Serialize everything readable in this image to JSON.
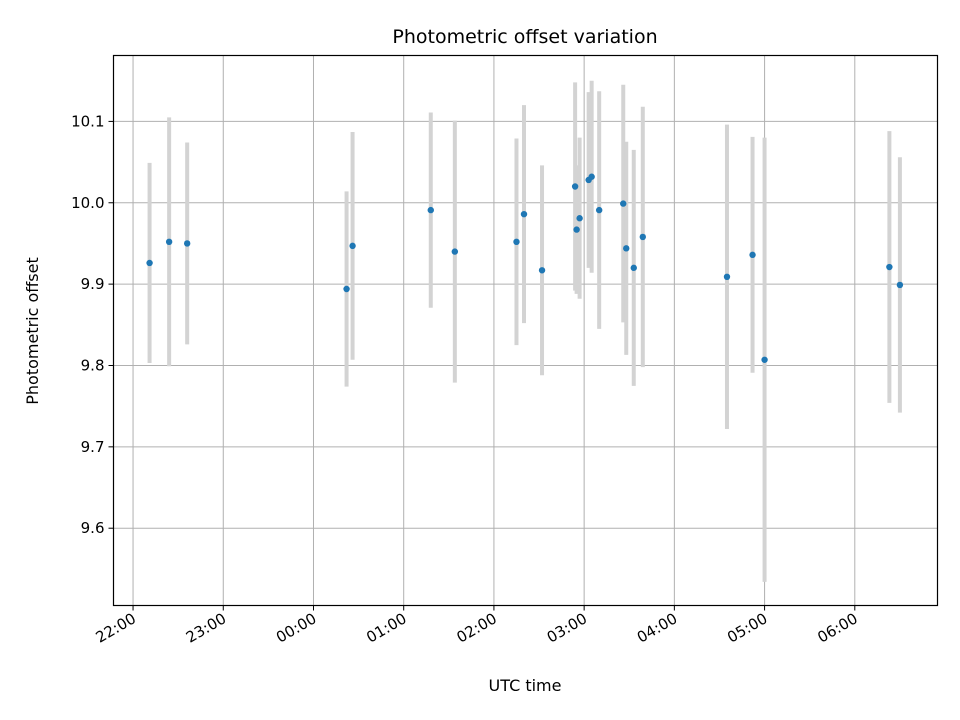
{
  "chart_data": {
    "type": "scatter",
    "title": "Photometric offset variation",
    "xlabel": "UTC time",
    "ylabel": "Photometric offset",
    "grid": true,
    "x_ticks": [
      "22:00",
      "23:00",
      "00:00",
      "01:00",
      "02:00",
      "03:00",
      "04:00",
      "05:00",
      "06:00"
    ],
    "y_ticks": [
      "9.6",
      "9.7",
      "9.8",
      "9.9",
      "10.0",
      "10.1"
    ],
    "x_tick_times": [
      "22:00",
      "23:00",
      "00:00",
      "01:00",
      "02:00",
      "03:00",
      "04:00",
      "05:00",
      "06:00"
    ],
    "y_tick_values": [
      9.6,
      9.7,
      9.8,
      9.9,
      10.0,
      10.1
    ],
    "xlim": [
      "21:47",
      "06:55"
    ],
    "ylim": [
      9.505,
      10.181
    ],
    "colors": {
      "marker": "#1f77b4",
      "errorbar": "#d3d3d3",
      "grid": "#b0b0b0"
    },
    "series": [
      {
        "points": [
          {
            "x": "22:11",
            "y": 9.926,
            "err": 0.123
          },
          {
            "x": "22:24",
            "y": 9.952,
            "err": 0.153
          },
          {
            "x": "22:36",
            "y": 9.95,
            "err": 0.124
          },
          {
            "x": "00:22",
            "y": 9.894,
            "err": 0.12
          },
          {
            "x": "00:26",
            "y": 9.947,
            "err": 0.14
          },
          {
            "x": "01:18",
            "y": 9.991,
            "err": 0.12
          },
          {
            "x": "01:34",
            "y": 9.94,
            "err": 0.161
          },
          {
            "x": "02:15",
            "y": 9.952,
            "err": 0.127
          },
          {
            "x": "02:20",
            "y": 9.986,
            "err": 0.134
          },
          {
            "x": "02:32",
            "y": 9.917,
            "err": 0.129
          },
          {
            "x": "02:54",
            "y": 10.02,
            "err": 0.128
          },
          {
            "x": "02:55",
            "y": 9.967,
            "err": 0.079
          },
          {
            "x": "02:57",
            "y": 9.981,
            "err": 0.099
          },
          {
            "x": "03:03",
            "y": 10.028,
            "err": 0.108
          },
          {
            "x": "03:05",
            "y": 10.032,
            "err": 0.118
          },
          {
            "x": "03:10",
            "y": 9.991,
            "err": 0.146
          },
          {
            "x": "03:26",
            "y": 9.999,
            "err": 0.146
          },
          {
            "x": "03:28",
            "y": 9.944,
            "err": 0.131
          },
          {
            "x": "03:33",
            "y": 9.92,
            "err": 0.145
          },
          {
            "x": "03:39",
            "y": 9.958,
            "err": 0.16
          },
          {
            "x": "04:35",
            "y": 9.909,
            "err": 0.187
          },
          {
            "x": "04:52",
            "y": 9.936,
            "err": 0.145
          },
          {
            "x": "05:00",
            "y": 9.807,
            "err": 0.273
          },
          {
            "x": "06:23",
            "y": 9.921,
            "err": 0.167
          },
          {
            "x": "06:30",
            "y": 9.899,
            "err": 0.157
          }
        ]
      }
    ]
  }
}
